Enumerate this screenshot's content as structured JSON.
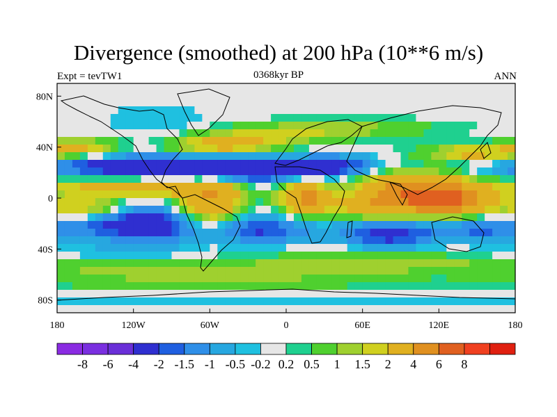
{
  "title": "Divergence (smoothed) at 200 hPa (10**6 m/s)",
  "subtitle_left": "Expt = tevTW1",
  "subtitle_center": "0368kyr BP",
  "subtitle_right": "ANN",
  "axes": {
    "x_ticks": [
      {
        "lon": -180,
        "label": "180"
      },
      {
        "lon": -120,
        "label": "120W"
      },
      {
        "lon": -60,
        "label": "60W"
      },
      {
        "lon": 0,
        "label": "0"
      },
      {
        "lon": 60,
        "label": "60E"
      },
      {
        "lon": 120,
        "label": "120E"
      },
      {
        "lon": 180,
        "label": "180"
      }
    ],
    "y_ticks": [
      {
        "lat": 80,
        "label": "80N"
      },
      {
        "lat": 40,
        "label": "40N"
      },
      {
        "lat": 0,
        "label": "0"
      },
      {
        "lat": -40,
        "label": "40S"
      },
      {
        "lat": -80,
        "label": "80S"
      }
    ],
    "lon_range": [
      -180,
      180
    ],
    "lat_range": [
      -90,
      90
    ]
  },
  "colorbar": {
    "colors": [
      "#8a2be2",
      "#7a2fe0",
      "#6a2fd8",
      "#2f2fd0",
      "#1f5fe0",
      "#2f8fe8",
      "#27a7e0",
      "#1fc0e0",
      "#e6e6e6",
      "#1fd08f",
      "#4fd02f",
      "#9fd02f",
      "#d0d01f",
      "#e0b020",
      "#e09020",
      "#e06020",
      "#f04020",
      "#e02010"
    ],
    "labels": [
      "-8",
      "-6",
      "-4",
      "-2",
      "-1.5",
      "-1",
      "-0.5",
      "-0.2",
      "0.2",
      "0.5",
      "1",
      "1.5",
      "2",
      "4",
      "6",
      "8"
    ]
  },
  "chart_data": {
    "type": "heatmap",
    "title": "Divergence (smoothed) at 200 hPa (10**6 m/s)",
    "variable": "200 hPa divergence (smoothed)",
    "units": "10**6 m/s",
    "experiment": "tevTW1",
    "time": "0368kyr BP",
    "season": "ANN",
    "levels": [
      -8,
      -6,
      -4,
      -2,
      -1.5,
      -1,
      -0.5,
      -0.2,
      0.2,
      0.5,
      1,
      1.5,
      2,
      4,
      6,
      8
    ],
    "xlabel": "",
    "ylabel": "",
    "xlim": [
      -180,
      180
    ],
    "ylim": [
      -90,
      90
    ],
    "features": [
      {
        "lon": 100,
        "lat": 5,
        "sx": 30,
        "sy": 10,
        "value": 5.5
      },
      {
        "lon": 130,
        "lat": -2,
        "sx": 20,
        "sy": 8,
        "value": 4.5
      },
      {
        "lon": 15,
        "lat": 0,
        "sx": 14,
        "sy": 9,
        "value": 4.5
      },
      {
        "lon": -60,
        "lat": -5,
        "sx": 18,
        "sy": 14,
        "value": 4.0
      },
      {
        "lon": -120,
        "lat": 8,
        "sx": 50,
        "sy": 5,
        "value": 3.0
      },
      {
        "lon": -160,
        "lat": -8,
        "sx": 25,
        "sy": 6,
        "value": 2.5
      },
      {
        "lon": 70,
        "lat": -8,
        "sx": 22,
        "sy": 6,
        "value": 2.5
      },
      {
        "lon": 150,
        "lat": 35,
        "sx": 30,
        "sy": 5,
        "value": 2.5
      },
      {
        "lon": -160,
        "lat": 40,
        "sx": 20,
        "sy": 5,
        "value": 2.0
      },
      {
        "lon": -50,
        "lat": 42,
        "sx": 30,
        "sy": 6,
        "value": 2.5
      },
      {
        "lon": 0,
        "lat": 50,
        "sx": 40,
        "sy": 6,
        "value": 1.2
      },
      {
        "lon": 60,
        "lat": 55,
        "sx": 50,
        "sy": 5,
        "value": 1.0
      },
      {
        "lon": -60,
        "lat": -60,
        "sx": 120,
        "sy": 10,
        "value": 1.2
      },
      {
        "lon": 100,
        "lat": -50,
        "sx": 80,
        "sy": 6,
        "value": 1.0
      },
      {
        "lon": -110,
        "lat": 25,
        "sx": 60,
        "sy": 6,
        "value": -3.0
      },
      {
        "lon": -30,
        "lat": 22,
        "sx": 40,
        "sy": 7,
        "value": -3.0
      },
      {
        "lon": 40,
        "lat": 25,
        "sx": 25,
        "sy": 6,
        "value": -2.0
      },
      {
        "lon": -110,
        "lat": -20,
        "sx": 40,
        "sy": 10,
        "value": -3.0
      },
      {
        "lon": -20,
        "lat": -25,
        "sx": 30,
        "sy": 8,
        "value": -2.0
      },
      {
        "lon": 80,
        "lat": -28,
        "sx": 25,
        "sy": 8,
        "value": -2.5
      },
      {
        "lon": 150,
        "lat": -25,
        "sx": 25,
        "sy": 7,
        "value": -1.5
      },
      {
        "lon": -140,
        "lat": -45,
        "sx": 60,
        "sy": 5,
        "value": -0.8
      },
      {
        "lon": 0,
        "lat": -80,
        "sx": 180,
        "sy": 5,
        "value": -0.5
      },
      {
        "lon": -100,
        "lat": 60,
        "sx": 30,
        "sy": 10,
        "value": -0.5
      }
    ]
  }
}
